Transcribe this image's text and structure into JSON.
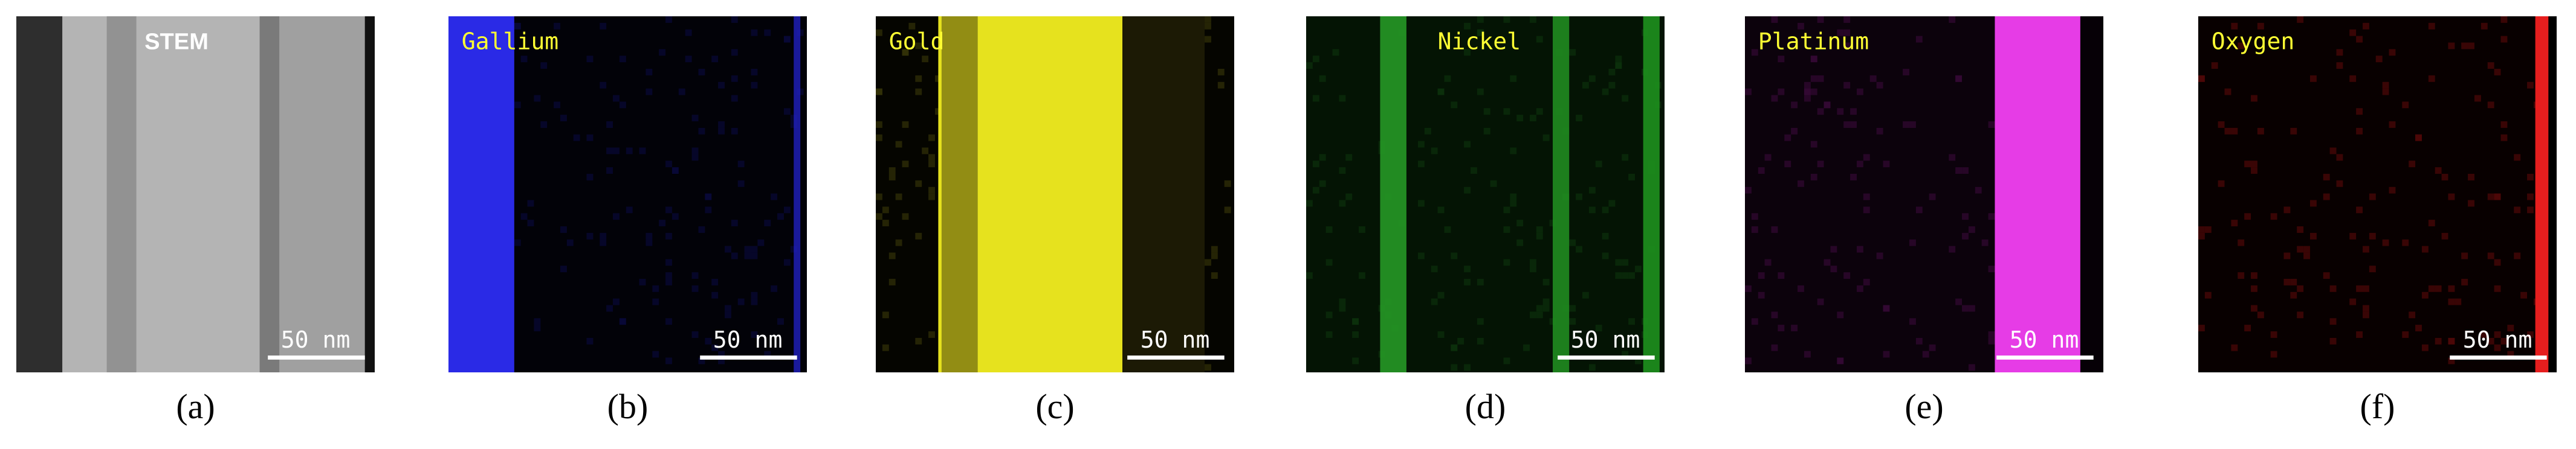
{
  "panels": [
    {
      "title": "STEM",
      "scale_bar": "50 nm",
      "caption": "(a)"
    },
    {
      "title": "Gallium",
      "scale_bar": "50 nm",
      "caption": "(b)"
    },
    {
      "title": "Gold",
      "scale_bar": "50 nm",
      "caption": "(c)"
    },
    {
      "title": "Nickel",
      "scale_bar": "50 nm",
      "caption": "(d)"
    },
    {
      "title": "Platinum",
      "scale_bar": "50 nm",
      "caption": "(e)"
    },
    {
      "title": "Oxygen",
      "scale_bar": "50 nm",
      "caption": "(f)"
    }
  ]
}
